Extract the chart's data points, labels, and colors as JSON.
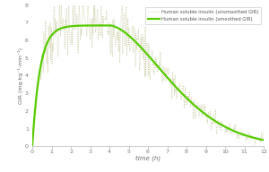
{
  "title": "",
  "xlabel": "time (h)",
  "ylabel": "GIR (mg·kg⁻¹·min⁻¹)",
  "xlim": [
    0,
    12
  ],
  "ylim": [
    0,
    8
  ],
  "yticks": [
    0,
    1,
    2,
    3,
    4,
    5,
    6,
    7,
    8
  ],
  "xticks": [
    0,
    1,
    2,
    3,
    4,
    5,
    6,
    7,
    8,
    9,
    10,
    11,
    12
  ],
  "smooth_color": "#55cc00",
  "noisy_color": "#c8c8a0",
  "background_color": "#ffffff",
  "legend_label_noisy": "Human soluble insulin (unsmoothed GIR)",
  "legend_label_smooth": "Human soluble insulin (smoothed GIR)",
  "smooth_lw": 1.6,
  "noisy_lw": 0.6,
  "peak_time": 4.0,
  "peak_value": 6.85,
  "rise_steepness": 2.2,
  "fall_shape": 1.8
}
